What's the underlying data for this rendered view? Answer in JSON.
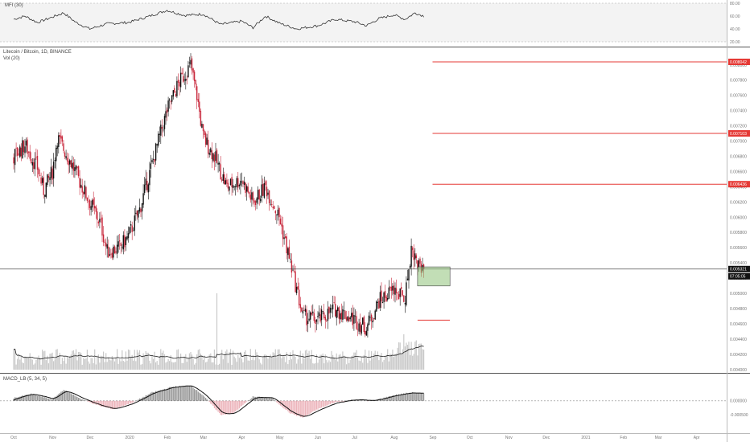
{
  "panes": {
    "mfi": {
      "label": "MFI (30)",
      "ticks": [
        "80.00",
        "60.00",
        "40.00",
        "20.00"
      ]
    },
    "main": {
      "title": "Litecoin / Bitcoin, 1D, BINANCE",
      "volume_label": "Vol (20)",
      "ticks": [
        "0.008000",
        "0.007800",
        "0.007600",
        "0.007400",
        "0.007200",
        "0.007000",
        "0.006800",
        "0.006600",
        "0.006400",
        "0.006200",
        "0.006000",
        "0.005800",
        "0.005600",
        "0.005400",
        "0.005200",
        "0.005000",
        "0.004800",
        "0.004600",
        "0.004400",
        "0.004200",
        "0.004000"
      ]
    },
    "macd": {
      "label": "MACD_LB (5, 34, 5)",
      "ticks": [
        "0.000000",
        "-0.000500"
      ]
    }
  },
  "tags": {
    "level_1": "0.008042",
    "level_2": "0.007103",
    "level_3": "0.006436",
    "last_price": "0.005321",
    "countdown": "07:05:05"
  },
  "x_axis": {
    "labels": [
      "Oct",
      "Nov",
      "Dec",
      "2020",
      "Feb",
      "Mar",
      "Apr",
      "May",
      "Jun",
      "Jul",
      "Aug",
      "Sep",
      "Oct",
      "Nov",
      "Dec",
      "2021",
      "Feb",
      "Mar",
      "Apr"
    ]
  },
  "colors": {
    "up": "#111111",
    "down": "#c8283c",
    "level_line": "#e53935",
    "level_tag": "#e53935",
    "box_fill": "#8fc27a",
    "box_stroke": "#444444",
    "volume": "#c9c9c9",
    "volume_ma": "#222222",
    "mfi_line": "#333333",
    "macd_hist_up": "#333333",
    "macd_hist_down": "#c8283c",
    "price_tag": "#111111"
  },
  "chart_data": [
    {
      "type": "line",
      "pane": "mfi",
      "title": "MFI (30)",
      "ylim": [
        20,
        80
      ],
      "x_range": [
        "2019-10-01",
        "2020-08-25"
      ],
      "points": [
        [
          "2019-10-01",
          55
        ],
        [
          "2019-10-10",
          60
        ],
        [
          "2019-10-20",
          50
        ],
        [
          "2019-10-30",
          57
        ],
        [
          "2019-11-10",
          65
        ],
        [
          "2019-11-20",
          50
        ],
        [
          "2019-12-01",
          40
        ],
        [
          "2019-12-15",
          48
        ],
        [
          "2020-01-01",
          50
        ],
        [
          "2020-01-15",
          58
        ],
        [
          "2020-02-01",
          69
        ],
        [
          "2020-02-15",
          61
        ],
        [
          "2020-03-01",
          63
        ],
        [
          "2020-03-15",
          47
        ],
        [
          "2020-04-01",
          52
        ],
        [
          "2020-04-10",
          42
        ],
        [
          "2020-04-20",
          60
        ],
        [
          "2020-05-01",
          49
        ],
        [
          "2020-05-15",
          40
        ],
        [
          "2020-06-01",
          45
        ],
        [
          "2020-06-15",
          55
        ],
        [
          "2020-07-01",
          51
        ],
        [
          "2020-07-10",
          45
        ],
        [
          "2020-07-20",
          56
        ],
        [
          "2020-08-01",
          62
        ],
        [
          "2020-08-10",
          55
        ],
        [
          "2020-08-18",
          65
        ],
        [
          "2020-08-25",
          60
        ]
      ]
    },
    {
      "type": "candlestick",
      "pane": "main",
      "title": "Litecoin / Bitcoin, 1D, BINANCE",
      "ylim": [
        0.004,
        0.0082
      ],
      "x_range": [
        "2019-10-01",
        "2021-04-30"
      ],
      "close_points": [
        [
          "2019-10-01",
          0.0068
        ],
        [
          "2019-10-10",
          0.00695
        ],
        [
          "2019-10-20",
          0.00665
        ],
        [
          "2019-10-25",
          0.00635
        ],
        [
          "2019-11-01",
          0.0066
        ],
        [
          "2019-11-05",
          0.00705
        ],
        [
          "2019-11-15",
          0.00675
        ],
        [
          "2019-11-25",
          0.0064
        ],
        [
          "2019-12-01",
          0.0062
        ],
        [
          "2019-12-10",
          0.0059
        ],
        [
          "2019-12-15",
          0.00555
        ],
        [
          "2019-12-25",
          0.0056
        ],
        [
          "2020-01-01",
          0.00575
        ],
        [
          "2020-01-10",
          0.0061
        ],
        [
          "2020-01-20",
          0.0067
        ],
        [
          "2020-01-25",
          0.007
        ],
        [
          "2020-02-01",
          0.0074
        ],
        [
          "2020-02-10",
          0.00775
        ],
        [
          "2020-02-20",
          0.008
        ],
        [
          "2020-02-25",
          0.0076
        ],
        [
          "2020-03-01",
          0.00705
        ],
        [
          "2020-03-10",
          0.0068
        ],
        [
          "2020-03-20",
          0.0064
        ],
        [
          "2020-04-01",
          0.0065
        ],
        [
          "2020-04-10",
          0.0062
        ],
        [
          "2020-04-20",
          0.0064
        ],
        [
          "2020-05-01",
          0.006
        ],
        [
          "2020-05-10",
          0.0054
        ],
        [
          "2020-05-20",
          0.0047
        ],
        [
          "2020-06-01",
          0.00465
        ],
        [
          "2020-06-15",
          0.0048
        ],
        [
          "2020-07-01",
          0.00465
        ],
        [
          "2020-07-10",
          0.00455
        ],
        [
          "2020-07-20",
          0.0049
        ],
        [
          "2020-08-01",
          0.00505
        ],
        [
          "2020-08-10",
          0.00495
        ],
        [
          "2020-08-15",
          0.0056
        ],
        [
          "2020-08-20",
          0.0054
        ],
        [
          "2020-08-25",
          0.00532
        ]
      ],
      "volume_spike": "2020-03-12",
      "levels": [
        {
          "value": 0.008042,
          "from": "2020-09-01"
        },
        {
          "value": 0.007103,
          "from": "2020-09-01"
        },
        {
          "value": 0.006436,
          "from": "2020-09-01"
        },
        {
          "value": 0.00465,
          "from": "2020-08-20",
          "to": "2020-09-15"
        }
      ],
      "last_price": 0.005321,
      "box": {
        "x_from": "2020-08-20",
        "x_to": "2020-09-15",
        "y_low": 0.0051,
        "y_high": 0.00535
      }
    },
    {
      "type": "bar",
      "pane": "macd",
      "title": "MACD_LB (5, 34, 5)",
      "ylim": [
        -0.0009,
        0.0006
      ],
      "x_range": [
        "2019-10-01",
        "2020-08-25"
      ],
      "points": [
        [
          "2019-10-01",
          0.0001
        ],
        [
          "2019-10-15",
          0.00025
        ],
        [
          "2019-11-01",
          5e-05
        ],
        [
          "2019-11-10",
          0.0004
        ],
        [
          "2019-11-25",
          5e-05
        ],
        [
          "2019-12-10",
          -0.0002
        ],
        [
          "2019-12-20",
          -0.0003
        ],
        [
          "2020-01-05",
          -5e-05
        ],
        [
          "2020-01-20",
          0.0003
        ],
        [
          "2020-02-05",
          0.0005
        ],
        [
          "2020-02-20",
          0.00055
        ],
        [
          "2020-03-01",
          0.0002
        ],
        [
          "2020-03-15",
          -0.0005
        ],
        [
          "2020-03-25",
          -0.00045
        ],
        [
          "2020-04-10",
          0.00015
        ],
        [
          "2020-04-25",
          0.0001
        ],
        [
          "2020-05-10",
          -0.00045
        ],
        [
          "2020-05-20",
          -0.0006
        ],
        [
          "2020-06-01",
          -0.0003
        ],
        [
          "2020-06-15",
          -5e-05
        ],
        [
          "2020-07-01",
          5e-05
        ],
        [
          "2020-07-15",
          0.0
        ],
        [
          "2020-08-01",
          0.0002
        ],
        [
          "2020-08-15",
          0.0003
        ],
        [
          "2020-08-25",
          0.00025
        ]
      ]
    }
  ]
}
